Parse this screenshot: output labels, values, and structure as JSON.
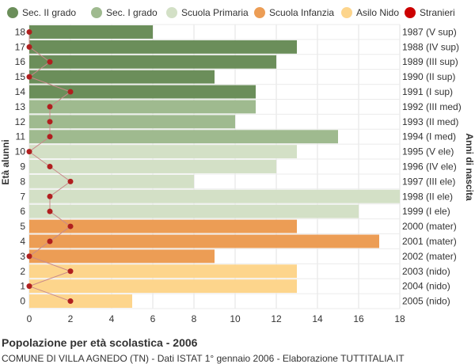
{
  "chart_data": {
    "type": "bar",
    "orientation": "horizontal",
    "title": "Popolazione per età scolastica - 2006",
    "subtitle": "COMUNE DI VILLA AGNEDO (TN) - Dati ISTAT 1° gennaio 2006 - Elaborazione TUTTITALIA.IT",
    "ylabel_left": "Età alunni",
    "ylabel_right": "Anni di nascita",
    "xlim": [
      0,
      18
    ],
    "x_ticks": [
      0,
      2,
      4,
      6,
      8,
      10,
      12,
      14,
      16,
      18
    ],
    "grid": true,
    "legend_position": "top",
    "legend": [
      {
        "name": "Sec. II grado",
        "color": "#6b8e5a",
        "marker": "circle"
      },
      {
        "name": "Sec. I grado",
        "color": "#9fba8f",
        "marker": "circle"
      },
      {
        "name": "Scuola Primaria",
        "color": "#d3e0c6",
        "marker": "circle"
      },
      {
        "name": "Scuola Infanzia",
        "color": "#ec9d55",
        "marker": "circle"
      },
      {
        "name": "Asilo Nido",
        "color": "#fdd58c",
        "marker": "circle"
      },
      {
        "name": "Stranieri",
        "color": "#cc0000",
        "marker": "circle"
      }
    ],
    "rows": [
      {
        "age": "18",
        "birth": "1987 (V sup)",
        "value": 6,
        "stranieri": 0,
        "group": 0
      },
      {
        "age": "17",
        "birth": "1988 (IV sup)",
        "value": 13,
        "stranieri": 0,
        "group": 0
      },
      {
        "age": "16",
        "birth": "1989 (III sup)",
        "value": 12,
        "stranieri": 1,
        "group": 0
      },
      {
        "age": "15",
        "birth": "1990 (II sup)",
        "value": 9,
        "stranieri": 0,
        "group": 0
      },
      {
        "age": "14",
        "birth": "1991 (I sup)",
        "value": 11,
        "stranieri": 2,
        "group": 0
      },
      {
        "age": "13",
        "birth": "1992 (III med)",
        "value": 11,
        "stranieri": 1,
        "group": 1
      },
      {
        "age": "12",
        "birth": "1993 (II med)",
        "value": 10,
        "stranieri": 1,
        "group": 1
      },
      {
        "age": "11",
        "birth": "1994 (I med)",
        "value": 15,
        "stranieri": 1,
        "group": 1
      },
      {
        "age": "10",
        "birth": "1995 (V ele)",
        "value": 13,
        "stranieri": 0,
        "group": 2
      },
      {
        "age": "9",
        "birth": "1996 (IV ele)",
        "value": 12,
        "stranieri": 1,
        "group": 2
      },
      {
        "age": "8",
        "birth": "1997 (III ele)",
        "value": 8,
        "stranieri": 2,
        "group": 2
      },
      {
        "age": "7",
        "birth": "1998 (II ele)",
        "value": 18,
        "stranieri": 1,
        "group": 2
      },
      {
        "age": "6",
        "birth": "1999 (I ele)",
        "value": 16,
        "stranieri": 1,
        "group": 2
      },
      {
        "age": "5",
        "birth": "2000 (mater)",
        "value": 13,
        "stranieri": 2,
        "group": 3
      },
      {
        "age": "4",
        "birth": "2001 (mater)",
        "value": 17,
        "stranieri": 1,
        "group": 3
      },
      {
        "age": "3",
        "birth": "2002 (mater)",
        "value": 9,
        "stranieri": 0,
        "group": 3
      },
      {
        "age": "2",
        "birth": "2003 (nido)",
        "value": 13,
        "stranieri": 2,
        "group": 4
      },
      {
        "age": "1",
        "birth": "2004 (nido)",
        "value": 13,
        "stranieri": 0,
        "group": 4
      },
      {
        "age": "0",
        "birth": "2005 (nido)",
        "value": 5,
        "stranieri": 2,
        "group": 4
      }
    ]
  }
}
